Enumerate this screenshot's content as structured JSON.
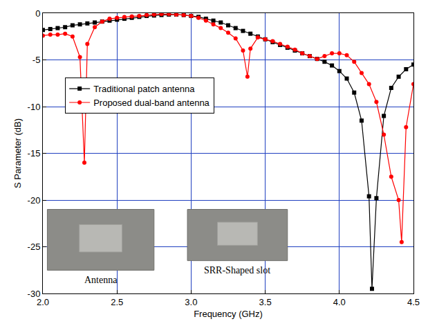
{
  "chart_data": {
    "type": "line",
    "x_label": "Frequency (GHz)",
    "y_label": "S Parameter (dB)",
    "xlim": [
      2.0,
      4.5
    ],
    "xticks": [
      {
        "value": 2.0,
        "label": "2.0"
      },
      {
        "value": 2.5,
        "label": "2.5"
      },
      {
        "value": 3.0,
        "label": "3.0"
      },
      {
        "value": 3.5,
        "label": "3.5"
      },
      {
        "value": 4.0,
        "label": "4.0"
      },
      {
        "value": 4.5,
        "label": "4.5"
      }
    ],
    "ylim": [
      -30,
      0
    ],
    "yticks": [
      -30,
      -25,
      -20,
      -15,
      -10,
      -5,
      0
    ],
    "grid": true,
    "legend": "upper left",
    "series": [
      {
        "name": "Traditional patch antenna",
        "color": "#000000",
        "marker": "square",
        "line_style": "solid",
        "x": [
          2.0,
          2.05,
          2.1,
          2.15,
          2.2,
          2.25,
          2.3,
          2.35,
          2.4,
          2.45,
          2.5,
          2.55,
          2.6,
          2.65,
          2.7,
          2.75,
          2.8,
          2.85,
          2.9,
          2.95,
          3.0,
          3.05,
          3.1,
          3.15,
          3.2,
          3.25,
          3.3,
          3.35,
          3.4,
          3.45,
          3.5,
          3.55,
          3.6,
          3.65,
          3.7,
          3.75,
          3.8,
          3.85,
          3.9,
          3.95,
          4.0,
          4.05,
          4.1,
          4.15,
          4.2,
          4.22,
          4.25,
          4.3,
          4.35,
          4.4,
          4.45,
          4.5
        ],
        "values": [
          -1.8,
          -1.7,
          -1.6,
          -1.5,
          -1.3,
          -1.2,
          -1.1,
          -1.0,
          -0.9,
          -0.8,
          -0.7,
          -0.6,
          -0.5,
          -0.4,
          -0.3,
          -0.25,
          -0.2,
          -0.15,
          -0.15,
          -0.2,
          -0.3,
          -0.4,
          -0.6,
          -0.8,
          -1.0,
          -1.3,
          -1.6,
          -1.9,
          -2.2,
          -2.5,
          -2.8,
          -3.1,
          -3.4,
          -3.7,
          -4.0,
          -4.3,
          -4.6,
          -4.9,
          -5.2,
          -5.6,
          -6.2,
          -7.0,
          -8.5,
          -11.5,
          -19.6,
          -29.5,
          -19.8,
          -11.0,
          -8.0,
          -6.8,
          -6.0,
          -5.5
        ]
      },
      {
        "name": "Proposed dual-band antenna",
        "color": "#ff0000",
        "marker": "circle",
        "line_style": "solid",
        "x": [
          2.0,
          2.05,
          2.1,
          2.15,
          2.2,
          2.25,
          2.28,
          2.3,
          2.35,
          2.4,
          2.45,
          2.5,
          2.55,
          2.6,
          2.65,
          2.7,
          2.75,
          2.8,
          2.85,
          2.9,
          2.95,
          3.0,
          3.05,
          3.1,
          3.15,
          3.2,
          3.25,
          3.3,
          3.35,
          3.38,
          3.4,
          3.45,
          3.5,
          3.55,
          3.6,
          3.65,
          3.7,
          3.75,
          3.8,
          3.85,
          3.9,
          3.95,
          4.0,
          4.05,
          4.1,
          4.15,
          4.2,
          4.25,
          4.3,
          4.35,
          4.4,
          4.42,
          4.45,
          4.5
        ],
        "values": [
          -2.4,
          -2.3,
          -2.3,
          -2.2,
          -2.5,
          -4.7,
          -16.0,
          -3.3,
          -1.5,
          -0.9,
          -0.6,
          -0.5,
          -0.4,
          -0.35,
          -0.3,
          -0.2,
          -0.15,
          -0.1,
          -0.1,
          -0.15,
          -0.2,
          -0.3,
          -0.5,
          -0.8,
          -1.2,
          -1.6,
          -2.1,
          -2.7,
          -4.0,
          -6.8,
          -3.8,
          -2.6,
          -2.8,
          -3.0,
          -3.3,
          -3.6,
          -3.9,
          -4.3,
          -4.6,
          -4.9,
          -4.6,
          -4.3,
          -4.3,
          -4.5,
          -5.2,
          -6.4,
          -7.6,
          -9.5,
          -13.0,
          -17.5,
          -20.0,
          -24.5,
          -12.2,
          -7.6
        ]
      }
    ],
    "annotations": [
      {
        "text": "Antenna"
      },
      {
        "text": "SRR-Shaped slot"
      }
    ]
  }
}
